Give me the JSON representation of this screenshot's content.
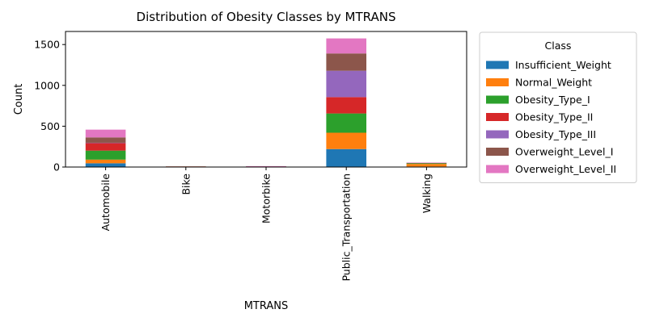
{
  "chart_data": {
    "type": "bar",
    "stacked": true,
    "title": "Distribution of Obesity Classes by MTRANS",
    "xlabel": "MTRANS",
    "ylabel": "Count",
    "ylim": [
      0,
      1660
    ],
    "yticks": [
      0,
      500,
      1000,
      1500
    ],
    "grid": false,
    "categories": [
      "Automobile",
      "Bike",
      "Motorbike",
      "Public_Transportation",
      "Walking"
    ],
    "legend": {
      "title": "Class",
      "placement": "outside-right"
    },
    "series": [
      {
        "name": "Insufficient_Weight",
        "color": "#1f77b4",
        "values": [
          46,
          0,
          0,
          220,
          6
        ]
      },
      {
        "name": "Normal_Weight",
        "color": "#ff7f0e",
        "values": [
          45,
          4,
          6,
          200,
          32
        ]
      },
      {
        "name": "Obesity_Type_I",
        "color": "#2ca02c",
        "values": [
          110,
          2,
          0,
          236,
          7
        ]
      },
      {
        "name": "Obesity_Type_II",
        "color": "#d62728",
        "values": [
          95,
          1,
          0,
          200,
          0
        ]
      },
      {
        "name": "Obesity_Type_III",
        "color": "#9467bd",
        "values": [
          1,
          0,
          0,
          323,
          0
        ]
      },
      {
        "name": "Overweight_Level_I",
        "color": "#8c564b",
        "values": [
          66,
          0,
          4,
          212,
          6
        ]
      },
      {
        "name": "Overweight_Level_II",
        "color": "#e377c2",
        "values": [
          95,
          0,
          1,
          184,
          4
        ]
      }
    ]
  }
}
